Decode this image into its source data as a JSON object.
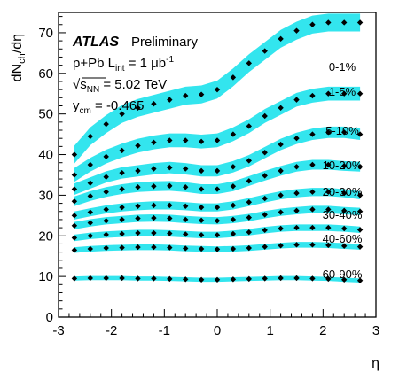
{
  "chart_data": {
    "type": "scatter",
    "xlabel": "η",
    "ylabel": "dN_ch/dη",
    "xlim": [
      -3,
      3
    ],
    "ylim": [
      0,
      75
    ],
    "xticks": [
      "-3",
      "-2",
      "-1",
      "0",
      "1",
      "2",
      "3"
    ],
    "yticks": [
      "0",
      "10",
      "20",
      "30",
      "40",
      "50",
      "60",
      "70"
    ],
    "annotations": {
      "atlas": "ATLAS",
      "preliminary": "Preliminary",
      "line1": "p+Pb L_int = 1 μb⁻¹",
      "line2": "√s_NN = 5.02 TeV",
      "line3": "y_cm = -0.465"
    },
    "x": [
      -2.7,
      -2.4,
      -2.1,
      -1.8,
      -1.5,
      -1.2,
      -0.9,
      -0.6,
      -0.3,
      0.0,
      0.3,
      0.6,
      0.9,
      1.2,
      1.5,
      1.8,
      2.1,
      2.4,
      2.7
    ],
    "band_color": "#33e5ee",
    "marker_color": "#000000",
    "series": [
      {
        "name": "0-1%",
        "values": [
          40.0,
          44.5,
          47.5,
          50.0,
          51.5,
          52.5,
          53.5,
          54.5,
          54.8,
          56.0,
          59.0,
          62.5,
          65.5,
          68.5,
          70.5,
          72.0,
          72.5,
          72.5,
          72.5
        ]
      },
      {
        "name": "1-5%",
        "values": [
          35.0,
          37.5,
          39.5,
          41.0,
          42.2,
          43.0,
          43.5,
          43.5,
          43.2,
          43.5,
          45.0,
          47.0,
          49.5,
          51.5,
          53.5,
          54.5,
          55.0,
          55.0,
          55.0
        ]
      },
      {
        "name": "5-10%",
        "values": [
          31.5,
          33.0,
          34.5,
          35.5,
          36.0,
          36.5,
          36.8,
          36.5,
          36.0,
          36.0,
          37.0,
          38.5,
          40.5,
          42.5,
          44.0,
          45.0,
          45.5,
          45.5,
          45.0
        ]
      },
      {
        "name": "10-20%",
        "values": [
          28.5,
          29.8,
          30.8,
          31.5,
          32.0,
          32.2,
          32.3,
          32.0,
          31.5,
          31.5,
          32.2,
          33.5,
          34.8,
          36.0,
          37.0,
          37.5,
          37.5,
          37.2,
          37.0
        ]
      },
      {
        "name": "20-30%",
        "values": [
          25.0,
          25.8,
          26.5,
          27.0,
          27.3,
          27.5,
          27.5,
          27.3,
          27.0,
          27.0,
          27.5,
          28.3,
          29.2,
          30.0,
          30.5,
          30.8,
          30.8,
          30.5,
          30.0
        ]
      },
      {
        "name": "30-40%",
        "values": [
          22.5,
          23.2,
          23.7,
          24.0,
          24.3,
          24.4,
          24.3,
          24.0,
          23.8,
          23.7,
          24.0,
          24.5,
          25.2,
          25.8,
          26.2,
          26.5,
          26.5,
          26.2,
          26.0
        ]
      },
      {
        "name": "40-60%",
        "values": [
          19.5,
          20.0,
          20.3,
          20.5,
          20.7,
          20.7,
          20.6,
          20.4,
          20.2,
          20.2,
          20.5,
          20.9,
          21.4,
          21.8,
          22.0,
          22.0,
          22.0,
          21.8,
          21.5
        ]
      },
      {
        "name": "60-90%",
        "values": [
          16.5,
          16.8,
          17.0,
          17.1,
          17.2,
          17.2,
          17.1,
          16.9,
          16.8,
          16.7,
          16.8,
          17.0,
          17.3,
          17.6,
          17.8,
          17.8,
          17.7,
          17.5,
          17.3
        ]
      },
      {
        "name": "",
        "values": [
          9.5,
          9.6,
          9.6,
          9.6,
          9.5,
          9.5,
          9.4,
          9.3,
          9.2,
          9.2,
          9.3,
          9.4,
          9.5,
          9.6,
          9.6,
          9.5,
          9.4,
          9.2,
          9.0
        ]
      }
    ],
    "band_halfwidth": [
      2.2,
      1.7,
      1.4,
      1.2,
      1.0,
      0.9,
      0.8,
      0.7,
      0.5
    ]
  }
}
